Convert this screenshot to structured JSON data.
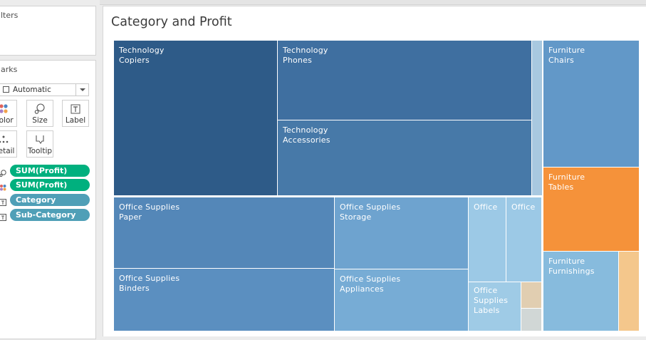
{
  "filters_card": {
    "title": "lters"
  },
  "marks_card": {
    "title": "arks",
    "mark_type": "Automatic",
    "buttons": [
      {
        "name": "color",
        "label": "Color"
      },
      {
        "name": "size",
        "label": "Size"
      },
      {
        "name": "label",
        "label": "Label"
      },
      {
        "name": "detail",
        "label": "Detail"
      },
      {
        "name": "tooltip",
        "label": "Tooltip"
      }
    ],
    "pills": [
      {
        "icon": "size-icon",
        "kind": "measure",
        "label": "SUM(Profit)"
      },
      {
        "icon": "color-icon",
        "kind": "measure",
        "label": "SUM(Profit)"
      },
      {
        "icon": "label-icon",
        "kind": "dimension",
        "label": "Category"
      },
      {
        "icon": "label-icon",
        "kind": "dimension",
        "label": "Sub-Category"
      }
    ]
  },
  "worksheet": {
    "title": "Category and Profit"
  },
  "chart_data": {
    "type": "treemap",
    "title": "Category and Profit",
    "size_measure": "SUM(Profit)",
    "color_measure": "SUM(Profit)",
    "tiles": [
      {
        "category": "Technology",
        "sub_category": "Copiers",
        "label_lines": [
          "Technology",
          "Copiers"
        ],
        "color": "#2e5b88"
      },
      {
        "category": "Technology",
        "sub_category": "Phones",
        "label_lines": [
          "Technology",
          "Phones"
        ],
        "color": "#3f6fa0"
      },
      {
        "category": "Technology",
        "sub_category": "Accessories",
        "label_lines": [
          "Technology",
          "Accessories"
        ],
        "color": "#4779a8"
      },
      {
        "category": "Technology",
        "sub_category": "",
        "label_lines": [],
        "color": "#a8c8e0"
      },
      {
        "category": "Furniture",
        "sub_category": "Chairs",
        "label_lines": [
          "Furniture",
          "Chairs"
        ],
        "color": "#6298c8"
      },
      {
        "category": "Furniture",
        "sub_category": "Tables",
        "label_lines": [
          "Furniture",
          "Tables"
        ],
        "color": "#f5923a"
      },
      {
        "category": "Furniture",
        "sub_category": "Furnishings",
        "label_lines": [
          "Furniture",
          "Furnishings"
        ],
        "color": "#87bbdd"
      },
      {
        "category": "Furniture",
        "sub_category": "",
        "label_lines": [],
        "color": "#f4c78c"
      },
      {
        "category": "Office Supplies",
        "sub_category": "Paper",
        "label_lines": [
          "Office Supplies",
          "Paper"
        ],
        "color": "#5487b8"
      },
      {
        "category": "Office Supplies",
        "sub_category": "Binders",
        "label_lines": [
          "Office Supplies",
          "Binders"
        ],
        "color": "#5b8fc0"
      },
      {
        "category": "Office Supplies",
        "sub_category": "Storage",
        "label_lines": [
          "Office Supplies",
          "Storage"
        ],
        "color": "#6ea3cf"
      },
      {
        "category": "Office Supplies",
        "sub_category": "Appliances",
        "label_lines": [
          "Office Supplies",
          "Appliances"
        ],
        "color": "#77acd5"
      },
      {
        "category": "Office Supplies",
        "sub_category": "",
        "label_lines": [
          "Office"
        ],
        "color": "#9cc9e6"
      },
      {
        "category": "Office Supplies",
        "sub_category": "",
        "label_lines": [
          "Office"
        ],
        "color": "#9cc9e6"
      },
      {
        "category": "Office Supplies",
        "sub_category": "Labels",
        "label_lines": [
          "Office",
          "Supplies",
          "Labels"
        ],
        "color": "#9fcbe6"
      },
      {
        "category": "Office Supplies",
        "sub_category": "",
        "label_lines": [],
        "color": "#e1ceb1"
      },
      {
        "category": "Office Supplies",
        "sub_category": "",
        "label_lines": [],
        "color": "#d1d7d6"
      }
    ]
  }
}
